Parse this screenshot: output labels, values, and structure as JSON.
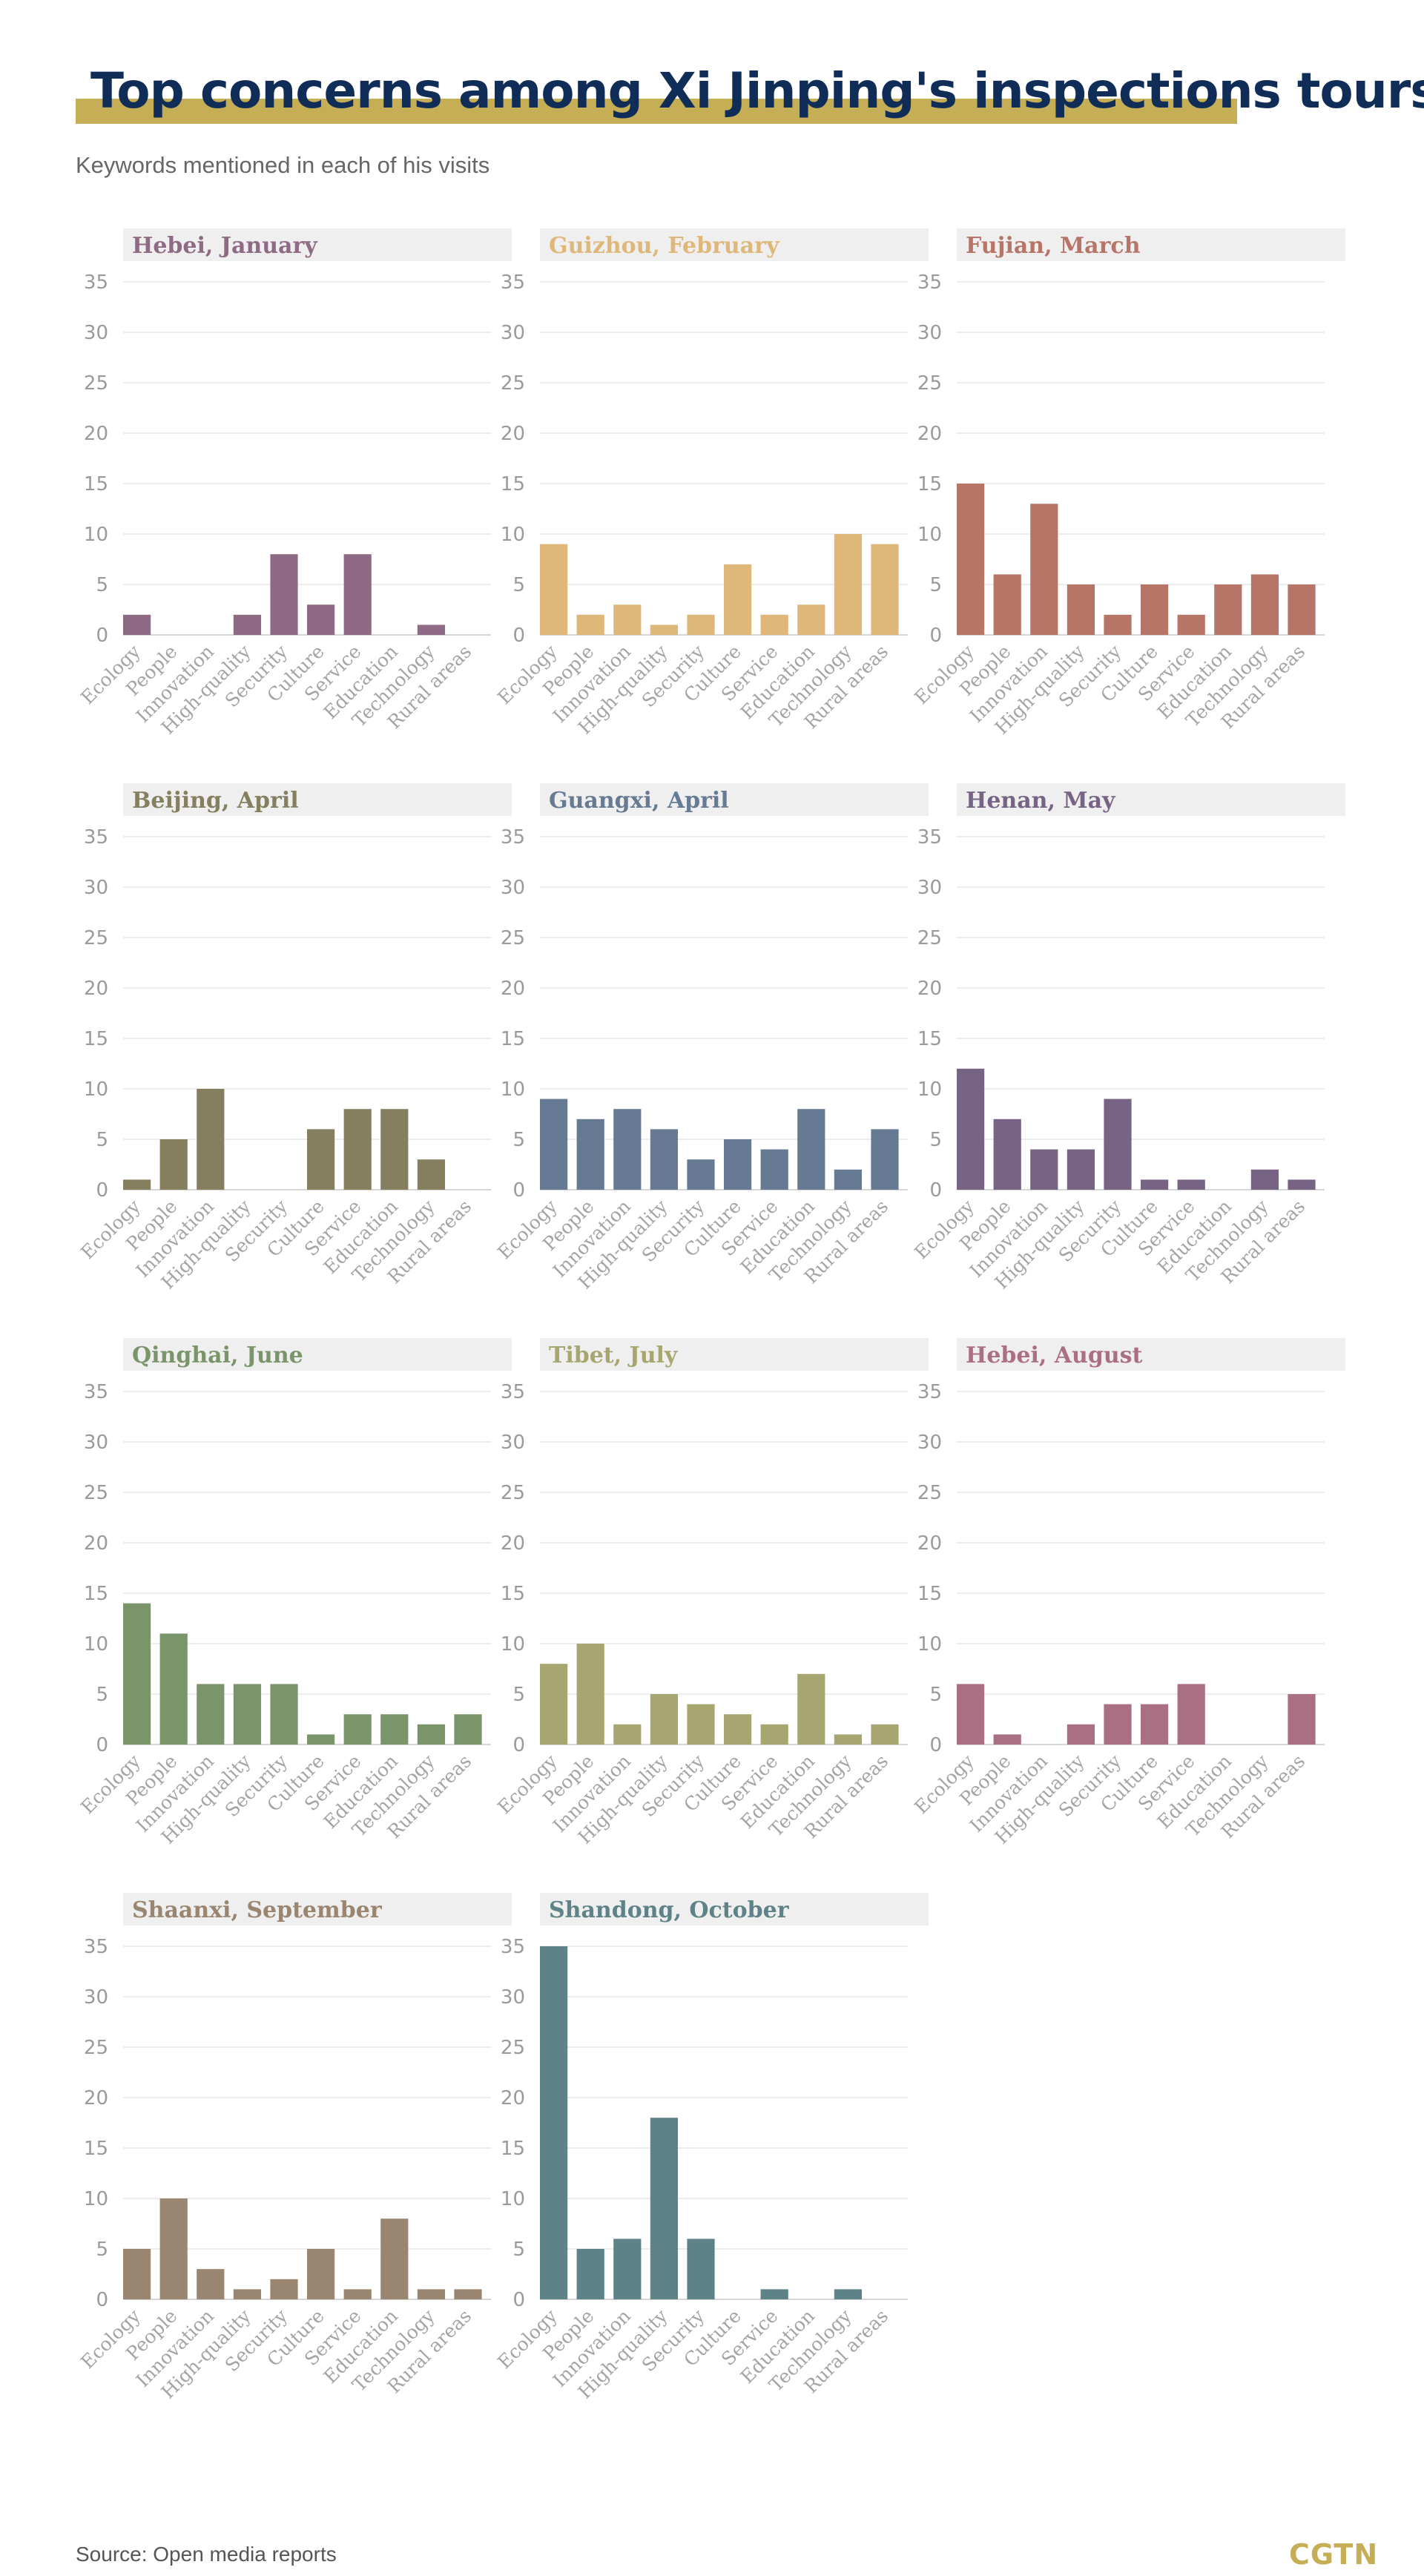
{
  "title": "Top concerns among Xi Jinping's inspections tours",
  "subtitle": "Keywords mentioned in each of his visits",
  "source": "Source: Open media reports",
  "logo": "CGTN",
  "colors": {
    "title": "#102d58",
    "title_bar": "#c5ae55",
    "panel_header_bg": "#efefef",
    "logo": "#c5ae55"
  },
  "chart_data": [
    {
      "type": "bar",
      "title": "Hebei, January",
      "color": "#8e6a84",
      "categories": [
        "Ecology",
        "People",
        "Innovation",
        "High-quality",
        "Security",
        "Culture",
        "Service",
        "Education",
        "Technology",
        "Rural areas"
      ],
      "values": [
        2,
        0,
        0,
        2,
        8,
        3,
        8,
        0,
        1,
        0
      ],
      "yticks": [
        0,
        5,
        10,
        15,
        20,
        25,
        30,
        35
      ],
      "ylim": [
        0,
        35
      ],
      "grid": true
    },
    {
      "type": "bar",
      "title": "Guizhou, February",
      "color": "#dfb879",
      "categories": [
        "Ecology",
        "People",
        "Innovation",
        "High-quality",
        "Security",
        "Culture",
        "Service",
        "Education",
        "Technology",
        "Rural areas"
      ],
      "values": [
        9,
        2,
        3,
        1,
        2,
        7,
        2,
        3,
        10,
        9
      ],
      "yticks": [
        0,
        5,
        10,
        15,
        20,
        25,
        30,
        35
      ],
      "ylim": [
        0,
        35
      ],
      "grid": true
    },
    {
      "type": "bar",
      "title": "Fujian, March",
      "color": "#b77568",
      "categories": [
        "Ecology",
        "People",
        "Innovation",
        "High-quality",
        "Security",
        "Culture",
        "Service",
        "Education",
        "Technology",
        "Rural areas"
      ],
      "values": [
        15,
        6,
        13,
        5,
        2,
        5,
        2,
        5,
        6,
        5
      ],
      "yticks": [
        0,
        5,
        10,
        15,
        20,
        25,
        30,
        35
      ],
      "ylim": [
        0,
        35
      ],
      "grid": true
    },
    {
      "type": "bar",
      "title": "Beijing, April",
      "color": "#857e5f",
      "categories": [
        "Ecology",
        "People",
        "Innovation",
        "High-quality",
        "Security",
        "Culture",
        "Service",
        "Education",
        "Technology",
        "Rural areas"
      ],
      "values": [
        1,
        5,
        10,
        0,
        0,
        6,
        8,
        8,
        3,
        0
      ],
      "yticks": [
        0,
        5,
        10,
        15,
        20,
        25,
        30,
        35
      ],
      "ylim": [
        0,
        35
      ],
      "grid": true
    },
    {
      "type": "bar",
      "title": "Guangxi, April",
      "color": "#667a93",
      "categories": [
        "Ecology",
        "People",
        "Innovation",
        "High-quality",
        "Security",
        "Culture",
        "Service",
        "Education",
        "Technology",
        "Rural areas"
      ],
      "values": [
        9,
        7,
        8,
        6,
        3,
        5,
        4,
        8,
        2,
        6
      ],
      "yticks": [
        0,
        5,
        10,
        15,
        20,
        25,
        30,
        35
      ],
      "ylim": [
        0,
        35
      ],
      "grid": true
    },
    {
      "type": "bar",
      "title": "Henan, May",
      "color": "#776485",
      "categories": [
        "Ecology",
        "People",
        "Innovation",
        "High-quality",
        "Security",
        "Culture",
        "Service",
        "Education",
        "Technology",
        "Rural areas"
      ],
      "values": [
        12,
        7,
        4,
        4,
        9,
        1,
        1,
        0,
        2,
        1
      ],
      "yticks": [
        0,
        5,
        10,
        15,
        20,
        25,
        30,
        35
      ],
      "ylim": [
        0,
        35
      ],
      "grid": true
    },
    {
      "type": "bar",
      "title": "Qinghai, June",
      "color": "#7b956b",
      "categories": [
        "Ecology",
        "People",
        "Innovation",
        "High-quality",
        "Security",
        "Culture",
        "Service",
        "Education",
        "Technology",
        "Rural areas"
      ],
      "values": [
        14,
        11,
        6,
        6,
        6,
        1,
        3,
        3,
        2,
        3
      ],
      "yticks": [
        0,
        5,
        10,
        15,
        20,
        25,
        30,
        35
      ],
      "ylim": [
        0,
        35
      ],
      "grid": true
    },
    {
      "type": "bar",
      "title": "Tibet, July",
      "color": "#a7a670",
      "categories": [
        "Ecology",
        "People",
        "Innovation",
        "High-quality",
        "Security",
        "Culture",
        "Service",
        "Education",
        "Technology",
        "Rural areas"
      ],
      "values": [
        8,
        10,
        2,
        5,
        4,
        3,
        2,
        7,
        1,
        2
      ],
      "yticks": [
        0,
        5,
        10,
        15,
        20,
        25,
        30,
        35
      ],
      "ylim": [
        0,
        35
      ],
      "grid": true
    },
    {
      "type": "bar",
      "title": "Hebei, August",
      "color": "#ab6f83",
      "categories": [
        "Ecology",
        "People",
        "Innovation",
        "High-quality",
        "Security",
        "Culture",
        "Service",
        "Education",
        "Technology",
        "Rural areas"
      ],
      "values": [
        6,
        1,
        0,
        2,
        4,
        4,
        6,
        0,
        0,
        5
      ],
      "yticks": [
        0,
        5,
        10,
        15,
        20,
        25,
        30,
        35
      ],
      "ylim": [
        0,
        35
      ],
      "grid": true
    },
    {
      "type": "bar",
      "title": "Shaanxi, September",
      "color": "#998570",
      "categories": [
        "Ecology",
        "People",
        "Innovation",
        "High-quality",
        "Security",
        "Culture",
        "Service",
        "Education",
        "Technology",
        "Rural areas"
      ],
      "values": [
        5,
        10,
        3,
        1,
        2,
        5,
        1,
        8,
        1,
        1
      ],
      "yticks": [
        0,
        5,
        10,
        15,
        20,
        25,
        30,
        35
      ],
      "ylim": [
        0,
        35
      ],
      "grid": true
    },
    {
      "type": "bar",
      "title": "Shandong, October",
      "color": "#5d8287",
      "categories": [
        "Ecology",
        "People",
        "Innovation",
        "High-quality",
        "Security",
        "Culture",
        "Service",
        "Education",
        "Technology",
        "Rural areas"
      ],
      "values": [
        35,
        5,
        6,
        18,
        6,
        0,
        1,
        0,
        1,
        0
      ],
      "yticks": [
        0,
        5,
        10,
        15,
        20,
        25,
        30,
        35
      ],
      "ylim": [
        0,
        35
      ],
      "grid": true
    }
  ]
}
